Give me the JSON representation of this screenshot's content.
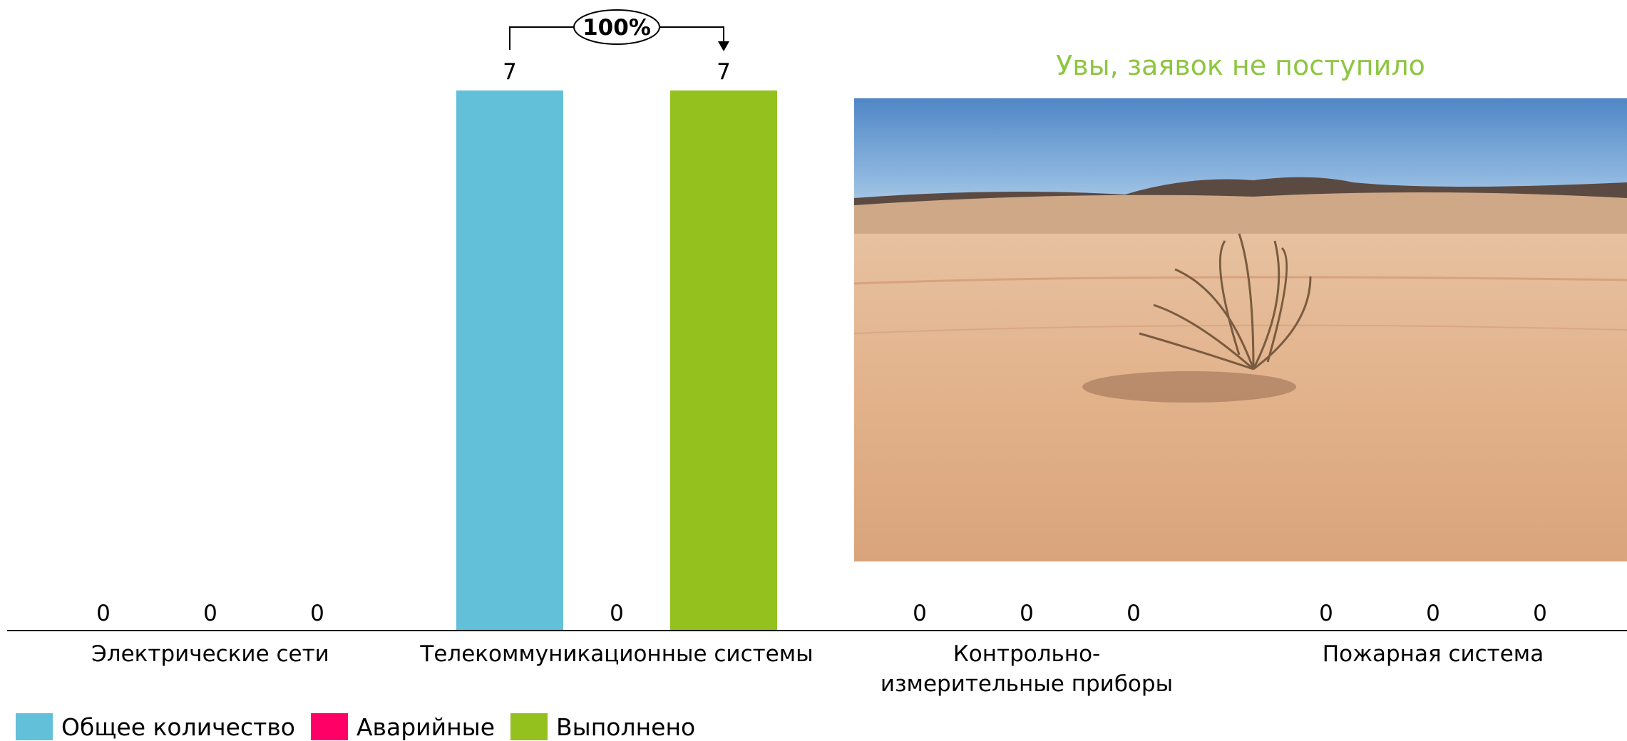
{
  "chart_data": {
    "type": "bar",
    "categories": [
      "Электрические сети",
      "Телекоммуникационные системы",
      "Контрольно-\nизмерительные приборы",
      "Пожарная система"
    ],
    "series": [
      {
        "name": "Общее количество",
        "color": "#63C0D9",
        "values": [
          0,
          7,
          0,
          0
        ]
      },
      {
        "name": "Аварийные",
        "color": "#FF0066",
        "values": [
          0,
          0,
          0,
          0
        ]
      },
      {
        "name": "Выполнено",
        "color": "#95C11F",
        "values": [
          0,
          7,
          0,
          0
        ]
      }
    ],
    "ylim": [
      0,
      7
    ],
    "legend_position": "bottom-left",
    "annotations": [
      {
        "text": "100%",
        "from_series": "Общее количество",
        "to_series": "Выполнено",
        "category": "Телекоммуникационные системы"
      }
    ]
  },
  "overlay": {
    "message": "Увы, заявок не поступило",
    "message_color": "#8DC63F",
    "image": "desert-tumbleweed-photo"
  }
}
